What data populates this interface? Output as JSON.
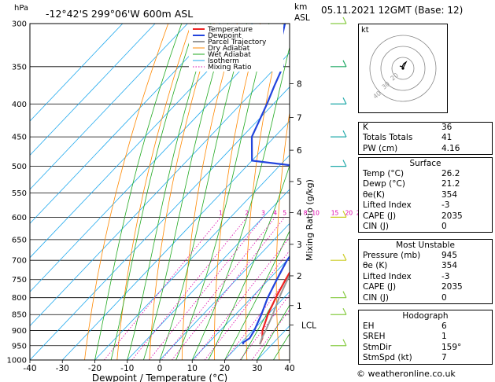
{
  "header": {
    "location": "-12°42'S  299°06'W  600m  ASL",
    "date": "05.11.2021  12GMT  (Base: 12)",
    "hpa_label": "hPa",
    "km_label": "km",
    "asl_label": "ASL"
  },
  "axes": {
    "xlabel": "Dewpoint / Temperature (°C)",
    "ylabel_right": "Mixing Ratio (g/kg)",
    "x_ticks": [
      "-40",
      "-30",
      "-20",
      "-10",
      "0",
      "10",
      "20",
      "30",
      "40"
    ],
    "p_ticks": [
      "300",
      "350",
      "400",
      "450",
      "500",
      "550",
      "600",
      "650",
      "700",
      "750",
      "800",
      "850",
      "900",
      "950",
      "1000"
    ],
    "km_ticks": [
      "8",
      "7",
      "6",
      "5",
      "4",
      "3",
      "2",
      "1"
    ],
    "lcl_label": "LCL",
    "mixing_ratio_labels": [
      "1",
      "2",
      "3",
      "4",
      "5",
      "8",
      "10",
      "15",
      "20",
      "25"
    ]
  },
  "legend": [
    "Temperature",
    "Dewpoint",
    "Parcel Trajectory",
    "Dry Adiabat",
    "Wet Adiabat",
    "Isotherm",
    "Mixing Ratio"
  ],
  "chart_data": {
    "type": "line",
    "title": "",
    "xlabel": "Dewpoint / Temperature (°C)",
    "ylabel": "hPa",
    "xlim": [
      -40,
      40
    ],
    "ylim": [
      1000,
      300
    ],
    "series": [
      {
        "name": "Temperature",
        "color": "#ee2222",
        "points": [
          [
            945,
            26.2
          ],
          [
            925,
            25.2
          ],
          [
            900,
            23.0
          ],
          [
            850,
            20.0
          ],
          [
            800,
            17.5
          ],
          [
            750,
            15.2
          ],
          [
            700,
            13.0
          ],
          [
            650,
            11.2
          ],
          [
            620,
            11.0
          ],
          [
            600,
            9.0
          ],
          [
            575,
            7.0
          ],
          [
            550,
            5.2
          ],
          [
            525,
            3.0
          ],
          [
            507,
            0.0
          ],
          [
            500,
            0.5
          ],
          [
            480,
            -0.5
          ],
          [
            450,
            -3.5
          ],
          [
            425,
            -7.0
          ],
          [
            400,
            -10.5
          ],
          [
            375,
            -14.0
          ],
          [
            350,
            -17.0
          ],
          [
            325,
            -19.5
          ],
          [
            300,
            -22.0
          ]
        ]
      },
      {
        "name": "Dewpoint",
        "color": "#2244dd",
        "points": [
          [
            945,
            21.2
          ],
          [
            940,
            20.5
          ],
          [
            925,
            21.3
          ],
          [
            900,
            20.5
          ],
          [
            850,
            18.0
          ],
          [
            800,
            15.0
          ],
          [
            750,
            12.5
          ],
          [
            700,
            10.0
          ],
          [
            650,
            8.5
          ],
          [
            600,
            5.0
          ],
          [
            560,
            2.0
          ],
          [
            550,
            -1.0
          ],
          [
            525,
            -4.0
          ],
          [
            500,
            -8.0
          ],
          [
            498,
            -17.0
          ],
          [
            490,
            -30.0
          ],
          [
            450,
            -37.0
          ],
          [
            400,
            -42.0
          ],
          [
            375,
            -45.0
          ],
          [
            350,
            -48.0
          ],
          [
            325,
            -55.0
          ],
          [
            300,
            -60.0
          ]
        ]
      },
      {
        "name": "Parcel Trajectory",
        "color": "#999999",
        "points": [
          [
            945,
            26.2
          ],
          [
            920,
            24.8
          ],
          [
            900,
            24.0
          ],
          [
            850,
            21.5
          ],
          [
            800,
            18.5
          ],
          [
            750,
            15.8
          ],
          [
            700,
            13.2
          ],
          [
            650,
            10.2
          ],
          [
            600,
            7.5
          ],
          [
            550,
            4.0
          ],
          [
            500,
            0.5
          ],
          [
            450,
            -4.0
          ],
          [
            400,
            -9.0
          ],
          [
            350,
            -15.0
          ],
          [
            300,
            -22.5
          ]
        ]
      }
    ]
  },
  "indices": {
    "rows": [
      {
        "label": "K",
        "value": "36"
      },
      {
        "label": "Totals Totals",
        "value": "41"
      },
      {
        "label": "PW (cm)",
        "value": "4.16"
      }
    ]
  },
  "surface": {
    "title": "Surface",
    "rows": [
      {
        "label": "Temp (°C)",
        "value": "26.2"
      },
      {
        "label": "Dewp (°C)",
        "value": "21.2"
      },
      {
        "label": "θe(K)",
        "value": "354"
      },
      {
        "label": "Lifted Index",
        "value": "-3"
      },
      {
        "label": "CAPE (J)",
        "value": "2035"
      },
      {
        "label": "CIN (J)",
        "value": "0"
      }
    ]
  },
  "most_unstable": {
    "title": "Most Unstable",
    "rows": [
      {
        "label": "Pressure (mb)",
        "value": "945"
      },
      {
        "label": "θe (K)",
        "value": "354"
      },
      {
        "label": "Lifted Index",
        "value": "-3"
      },
      {
        "label": "CAPE (J)",
        "value": "2035"
      },
      {
        "label": "CIN (J)",
        "value": "0"
      }
    ]
  },
  "hodograph": {
    "title": "Hodograph",
    "kt_label": "kt",
    "ring_labels": [
      "20",
      "30",
      "40"
    ],
    "rows": [
      {
        "label": "EH",
        "value": "6"
      },
      {
        "label": "SREH",
        "value": "1"
      },
      {
        "label": "StmDir",
        "value": "159°"
      },
      {
        "label": "StmSpd (kt)",
        "value": "7"
      }
    ]
  },
  "credit": "© weatheronline.co.uk",
  "colors": {
    "temperature": "#ee2222",
    "dewpoint": "#2244dd",
    "parcel": "#999999",
    "dry_adiabat": "#ff8800",
    "wet_adiabat": "#22aa22",
    "isotherm": "#22aaee",
    "mixing_ratio": "#dd00aa"
  }
}
